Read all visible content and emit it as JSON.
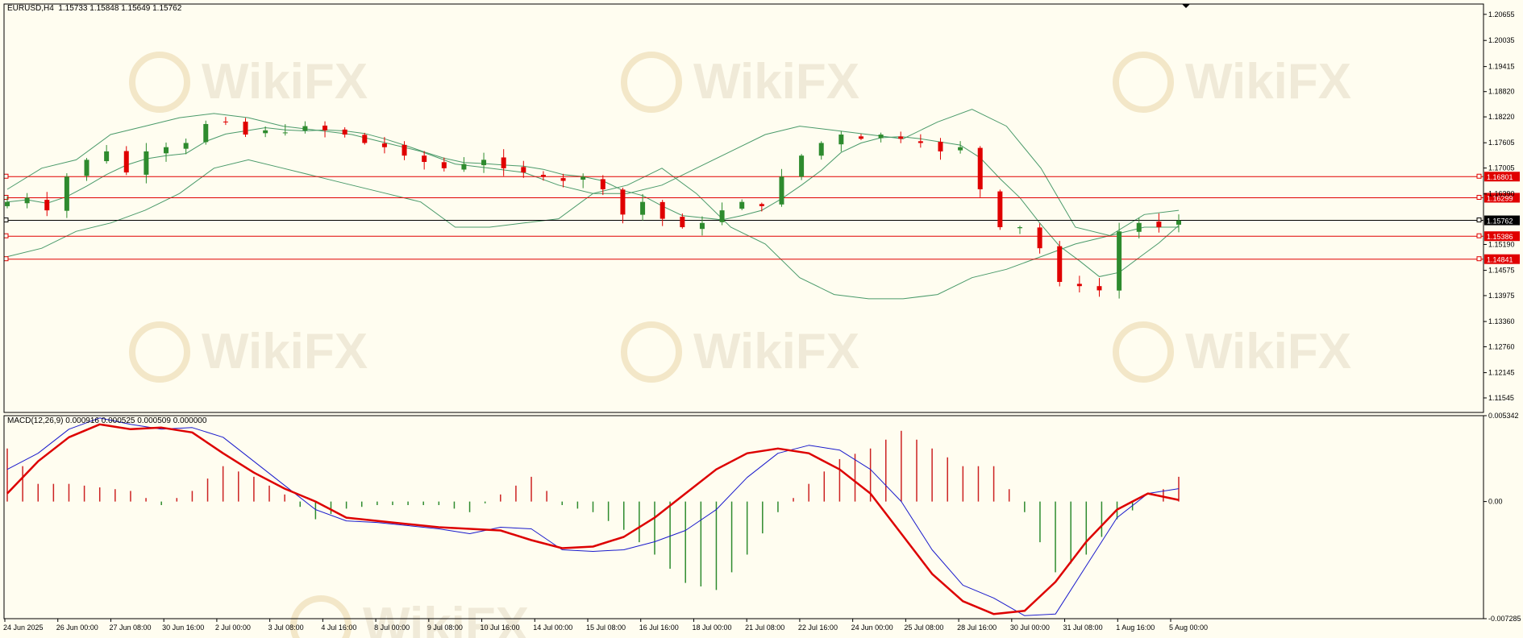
{
  "header": {
    "symbol_info": "EURUSD,H4  1.15733 1.15848 1.15649 1.15762",
    "macd_info": "MACD(12,26,9) 0.000916 0.000525 0.000509 0.000000"
  },
  "watermark": {
    "text": "WikiFX"
  },
  "colors": {
    "background": "#fffdf0",
    "bull": "#2e8b2e",
    "bear": "#e00000",
    "bands": "#4a9a6a",
    "level_line": "#e00000",
    "current_line": "#000000",
    "macd_line": "#1a1acc",
    "signal_line": "#dd0000",
    "hist_pos": "#cc2222",
    "hist_neg": "#2e8b2e"
  },
  "chart_data": [
    {
      "type": "candlestick",
      "name": "EURUSD,H4",
      "ylim": [
        1.112,
        1.209
      ],
      "price_ticks": [
        "1.20655",
        "1.20035",
        "1.19415",
        "1.18820",
        "1.18220",
        "1.17605",
        "1.17005",
        "1.16390",
        "1.15190",
        "1.14575",
        "1.13975",
        "1.13360",
        "1.12760",
        "1.12145",
        "1.11545"
      ],
      "levels": [
        {
          "value": 1.16801,
          "label": "1.16801",
          "color": "#e00000"
        },
        {
          "value": 1.16299,
          "label": "1.16299",
          "color": "#e00000"
        },
        {
          "value": 1.15762,
          "label": "1.15762",
          "color": "#000000"
        },
        {
          "value": 1.15386,
          "label": "1.15386",
          "color": "#e00000"
        },
        {
          "value": 1.14841,
          "label": "1.14841",
          "color": "#e00000"
        }
      ],
      "time_labels": [
        "24 Jun 2025",
        "26 Jun 00:00",
        "27 Jun 08:00",
        "30 Jun 16:00",
        "2 Jul 00:00",
        "3 Jul 08:00",
        "4 Jul 16:00",
        "8 Jul 00:00",
        "9 Jul 08:00",
        "10 Jul 16:00",
        "14 Jul 00:00",
        "15 Jul 08:00",
        "16 Jul 16:00",
        "18 Jul 00:00",
        "21 Jul 08:00",
        "22 Jul 16:00",
        "24 Jun 00:00",
        "25 Jul 08:00",
        "28 Jul 16:00",
        "30 Jul 00:00",
        "31 Jul 08:00",
        "1 Aug 16:00",
        "5 Aug 00:00"
      ],
      "close_path": [
        1.162,
        1.163,
        1.16,
        1.168,
        1.172,
        1.174,
        1.169,
        1.174,
        1.175,
        1.176,
        1.1805,
        1.181,
        1.178,
        1.179,
        1.1785,
        1.18,
        1.179,
        1.178,
        1.176,
        1.175,
        1.173,
        1.1715,
        1.17,
        1.171,
        1.172,
        1.17,
        1.169,
        1.168,
        1.167,
        1.168,
        1.165,
        1.159,
        1.162,
        1.158,
        1.156,
        1.157,
        1.16,
        1.162,
        1.161,
        1.168,
        1.173,
        1.176,
        1.178,
        1.177,
        1.178,
        1.177,
        1.176,
        1.174,
        1.175,
        1.165,
        1.156,
        1.156,
        1.151,
        1.143,
        1.142,
        1.141,
        1.155,
        1.157,
        1.156,
        1.1576
      ],
      "upper_band_path": [
        1.165,
        1.17,
        1.172,
        1.178,
        1.18,
        1.182,
        1.183,
        1.182,
        1.18,
        1.179,
        1.178,
        1.176,
        1.174,
        1.171,
        1.17,
        1.169,
        1.166,
        1.164,
        1.164,
        1.166,
        1.17,
        1.174,
        1.178,
        1.18,
        1.179,
        1.178,
        1.177,
        1.181,
        1.184,
        1.18,
        1.17,
        1.156,
        1.154,
        1.159,
        1.16
      ],
      "lower_band_path": [
        1.149,
        1.151,
        1.155,
        1.157,
        1.16,
        1.164,
        1.17,
        1.172,
        1.17,
        1.168,
        1.166,
        1.164,
        1.162,
        1.156,
        1.156,
        1.157,
        1.158,
        1.164,
        1.166,
        1.17,
        1.164,
        1.156,
        1.152,
        1.144,
        1.14,
        1.139,
        1.139,
        1.14,
        1.144,
        1.146,
        1.149,
        1.152,
        1.154,
        1.156,
        1.156
      ]
    },
    {
      "type": "line",
      "name": "MACD(12,26,9)",
      "ylim": [
        -0.007285,
        0.005342
      ],
      "y_ticks": [
        "0.005342",
        "0.00",
        "-0.007285"
      ],
      "series": [
        {
          "name": "MACD",
          "values": [
            0.002,
            0.003,
            0.0045,
            0.0052,
            0.0048,
            0.0045,
            0.0046,
            0.004,
            0.0025,
            0.001,
            -0.0005,
            -0.0012,
            -0.0013,
            -0.0015,
            -0.0017,
            -0.002,
            -0.0016,
            -0.0017,
            -0.003,
            -0.0031,
            -0.003,
            -0.0025,
            -0.0018,
            -0.0005,
            0.0015,
            0.003,
            0.0035,
            0.0032,
            0.002,
            0.0,
            -0.003,
            -0.0052,
            -0.006,
            -0.0071,
            -0.007,
            -0.004,
            -0.001,
            0.0005,
            0.0008
          ]
        },
        {
          "name": "Signal",
          "values": [
            0.0005,
            0.0025,
            0.004,
            0.0048,
            0.0045,
            0.0046,
            0.0043,
            0.003,
            0.0018,
            0.0008,
            0.0,
            -0.001,
            -0.0012,
            -0.0014,
            -0.0016,
            -0.0017,
            -0.0018,
            -0.0024,
            -0.0029,
            -0.0028,
            -0.0022,
            -0.001,
            0.0005,
            0.002,
            0.003,
            0.0033,
            0.003,
            0.002,
            0.0005,
            -0.002,
            -0.0045,
            -0.0062,
            -0.007,
            -0.0068,
            -0.005,
            -0.0025,
            -0.0005,
            0.0005,
            0.0001
          ]
        }
      ]
    }
  ]
}
